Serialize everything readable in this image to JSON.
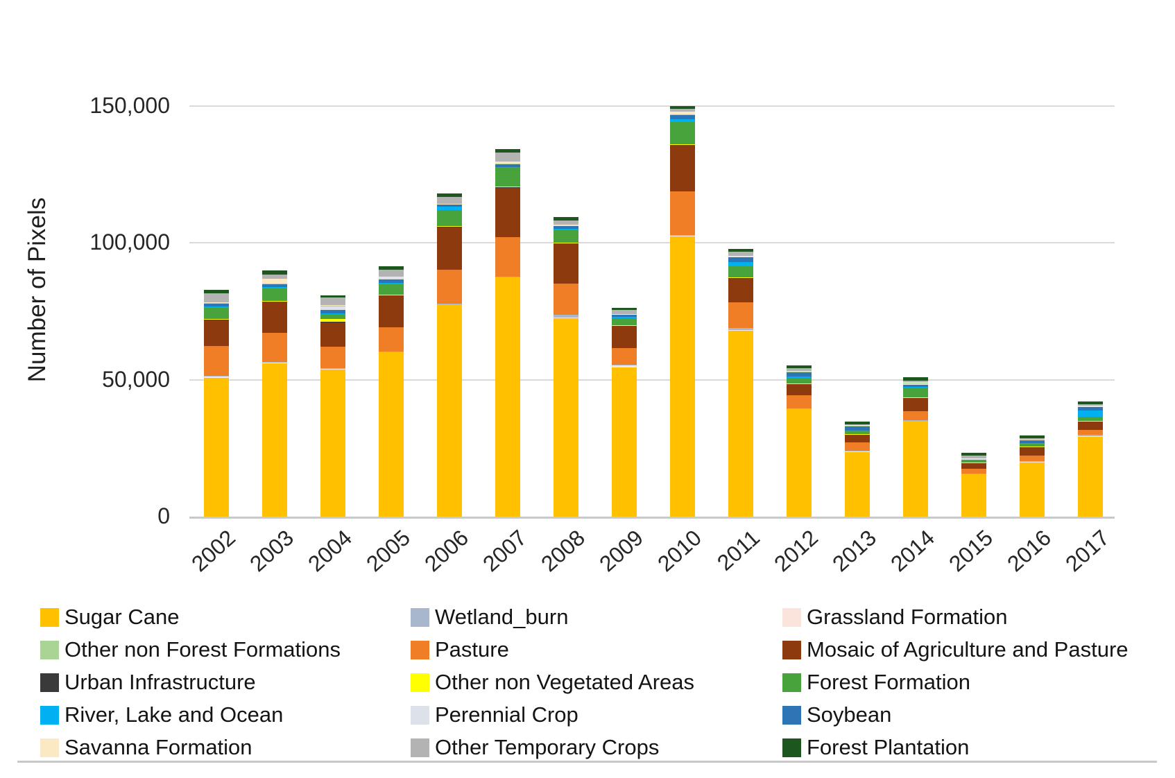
{
  "figure": {
    "y_axis_title": "Number of Pixels",
    "y_ticks": [
      {
        "label": "150,000",
        "value": 150000
      },
      {
        "label": "100,000",
        "value": 100000
      },
      {
        "label": "50,000",
        "value": 50000
      },
      {
        "label": "0",
        "value": 0
      }
    ],
    "gridline_color": "#d9d9d9",
    "baseline_color": "#c9c9c9",
    "text_color": "#262626"
  },
  "chart_data": {
    "type": "bar",
    "stacked": true,
    "title": "",
    "xlabel": "",
    "ylabel": "Number of Pixels",
    "ylim": [
      0,
      155000
    ],
    "grid": true,
    "legend_position": "bottom",
    "categories": [
      "2002",
      "2003",
      "2004",
      "2005",
      "2006",
      "2007",
      "2008",
      "2009",
      "2010",
      "2011",
      "2012",
      "2013",
      "2014",
      "2015",
      "2016",
      "2017"
    ],
    "series": [
      {
        "name": "Sugar Cane",
        "color": "#FFC000",
        "values": [
          50800,
          56000,
          53800,
          60000,
          77500,
          87400,
          72500,
          54600,
          102400,
          68000,
          39400,
          23800,
          35000,
          15500,
          20000,
          29200
        ]
      },
      {
        "name": "Grassland Formation",
        "color": "#FBE4DB",
        "values": [
          500,
          300,
          300,
          300,
          300,
          300,
          300,
          700,
          300,
          300,
          150,
          150,
          150,
          150,
          150,
          200
        ]
      },
      {
        "name": "Wetland_burn",
        "color": "#A8B7CB",
        "values": [
          100,
          100,
          100,
          100,
          100,
          100,
          900,
          100,
          100,
          700,
          100,
          100,
          100,
          100,
          100,
          400
        ]
      },
      {
        "name": "Pasture",
        "color": "#F07E27",
        "values": [
          10900,
          10800,
          7900,
          8700,
          12300,
          14400,
          11400,
          6300,
          16100,
          9300,
          4600,
          3000,
          3400,
          1700,
          2100,
          2000
        ]
      },
      {
        "name": "Mosaic of Agriculture and Pasture",
        "color": "#8E3A0F",
        "values": [
          9700,
          11400,
          8900,
          11900,
          15700,
          18200,
          14800,
          8100,
          17100,
          8900,
          4200,
          3000,
          4800,
          2200,
          3000,
          3100
        ]
      },
      {
        "name": "Urban Infrastructure",
        "color": "#3A3A3A",
        "values": [
          100,
          100,
          100,
          100,
          100,
          100,
          100,
          100,
          100,
          100,
          100,
          100,
          100,
          100,
          100,
          100
        ]
      },
      {
        "name": "Other non Vegetated Areas",
        "color": "#FFFF00",
        "values": [
          100,
          100,
          1200,
          100,
          100,
          100,
          100,
          100,
          100,
          100,
          100,
          100,
          100,
          100,
          100,
          100
        ]
      },
      {
        "name": "Forest Formation",
        "color": "#48A33C",
        "values": [
          4200,
          4700,
          1700,
          3800,
          5900,
          6800,
          4600,
          2500,
          7900,
          4200,
          2100,
          850,
          3400,
          850,
          1000,
          1500
        ]
      },
      {
        "name": "River, Lake and Ocean",
        "color": "#00B0F0",
        "values": [
          300,
          300,
          300,
          400,
          1300,
          400,
          400,
          500,
          1200,
          1300,
          400,
          300,
          300,
          150,
          300,
          2100
        ]
      },
      {
        "name": "Soybean",
        "color": "#2E75B6",
        "values": [
          1270,
          1270,
          1270,
          1270,
          800,
          1000,
          1270,
          800,
          1500,
          2000,
          1700,
          1700,
          900,
          200,
          1100,
          1270
        ]
      },
      {
        "name": "Perennial Crop",
        "color": "#DCE1EA",
        "values": [
          100,
          100,
          1500,
          800,
          100,
          100,
          100,
          100,
          100,
          300,
          100,
          100,
          600,
          100,
          100,
          500
        ]
      },
      {
        "name": "Other non Forest Formations",
        "color": "#A9D495",
        "values": [
          100,
          100,
          100,
          100,
          100,
          100,
          100,
          100,
          100,
          100,
          100,
          100,
          100,
          100,
          100,
          100
        ]
      },
      {
        "name": "Savanna Formation",
        "color": "#FBE9C4",
        "values": [
          100,
          1600,
          100,
          100,
          100,
          700,
          100,
          100,
          900,
          100,
          100,
          100,
          100,
          100,
          100,
          100
        ]
      },
      {
        "name": "Other Temporary Crops",
        "color": "#B3B3B3",
        "values": [
          3400,
          1700,
          2800,
          2500,
          2500,
          3400,
          1500,
          1300,
          1000,
          1300,
          1000,
          400,
          700,
          1000,
          400,
          500
        ]
      },
      {
        "name": "Forest Plantation",
        "color": "#1E5620",
        "values": [
          1300,
          1300,
          900,
          1300,
          1300,
          1100,
          1200,
          1000,
          1100,
          1000,
          1000,
          1000,
          1100,
          900,
          900,
          1000
        ]
      }
    ]
  },
  "legend": {
    "items": [
      {
        "label": "Sugar Cane",
        "color": "#FFC000"
      },
      {
        "label": "Wetland_burn",
        "color": "#A8B7CB"
      },
      {
        "label": "Grassland Formation",
        "color": "#FBE4DB"
      },
      {
        "label": "Other non Forest Formations",
        "color": "#A9D495"
      },
      {
        "label": "Pasture",
        "color": "#F07E27"
      },
      {
        "label": "Mosaic of Agriculture and Pasture",
        "color": "#8E3A0F"
      },
      {
        "label": "Urban Infrastructure",
        "color": "#3A3A3A"
      },
      {
        "label": "Other non Vegetated Areas",
        "color": "#FFFF00"
      },
      {
        "label": "Forest Formation",
        "color": "#48A33C"
      },
      {
        "label": "River, Lake and Ocean",
        "color": "#00B0F0"
      },
      {
        "label": "Perennial Crop",
        "color": "#DCE1EA"
      },
      {
        "label": "Soybean",
        "color": "#2E75B6"
      },
      {
        "label": "Savanna Formation",
        "color": "#FBE9C4"
      },
      {
        "label": "Other Temporary Crops",
        "color": "#B3B3B3"
      },
      {
        "label": "Forest Plantation",
        "color": "#1E5620"
      }
    ]
  }
}
